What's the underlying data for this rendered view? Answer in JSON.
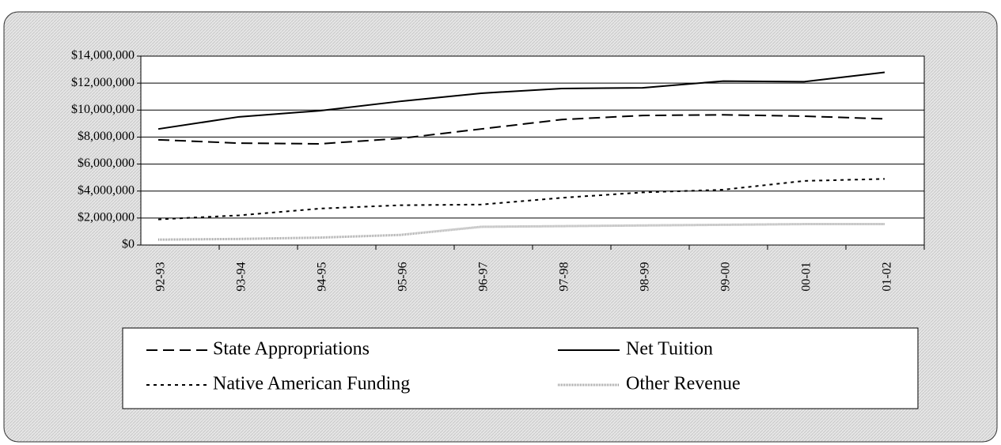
{
  "chart_data": {
    "type": "line",
    "categories": [
      "92-93",
      "93-94",
      "94-95",
      "95-96",
      "96-97",
      "97-98",
      "98-99",
      "99-00",
      "00-01",
      "01-02"
    ],
    "series": [
      {
        "name": "State Appropriations",
        "color": "#000000",
        "style": "dashed",
        "values": [
          7800000,
          7550000,
          7500000,
          7900000,
          8600000,
          9300000,
          9600000,
          9650000,
          9550000,
          9350000
        ]
      },
      {
        "name": "Net Tuition",
        "color": "#000000",
        "style": "solid",
        "values": [
          8600000,
          9500000,
          9950000,
          10650000,
          11250000,
          11600000,
          11650000,
          12150000,
          12100000,
          12800000
        ]
      },
      {
        "name": "Native American Funding",
        "color": "#000000",
        "style": "dotted",
        "values": [
          1900000,
          2200000,
          2700000,
          2950000,
          3000000,
          3500000,
          3900000,
          4100000,
          4750000,
          4900000
        ]
      },
      {
        "name": "Other Revenue",
        "color": "#9a9a9a",
        "style": "textured",
        "values": [
          400000,
          450000,
          550000,
          750000,
          1350000,
          1400000,
          1450000,
          1500000,
          1550000,
          1550000
        ]
      }
    ],
    "ylim": [
      0,
      14000000
    ],
    "yticks": [
      {
        "value": 0,
        "label": "$0"
      },
      {
        "value": 2000000,
        "label": "$2,000,000"
      },
      {
        "value": 4000000,
        "label": "$4,000,000"
      },
      {
        "value": 6000000,
        "label": "$6,000,000"
      },
      {
        "value": 8000000,
        "label": "$8,000,000"
      },
      {
        "value": 10000000,
        "label": "$10,000,000"
      },
      {
        "value": 12000000,
        "label": "$12,000,000"
      },
      {
        "value": 14000000,
        "label": "$14,000,000"
      }
    ],
    "grid": true
  }
}
